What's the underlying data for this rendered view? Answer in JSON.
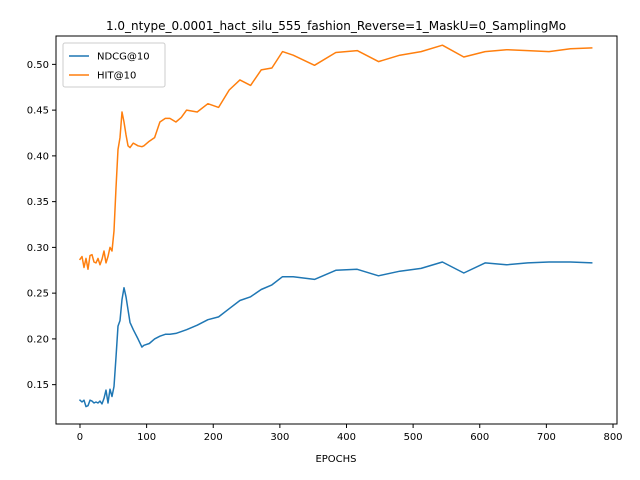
{
  "chart_data": {
    "type": "line",
    "title": "1.0_ntype_0.0001_hact_silu_555_fashion_Reverse=1_MaskU=0_SamplingMo",
    "xlabel": "EPOCHS",
    "ylabel": "",
    "xlim": [
      -36,
      806
    ],
    "ylim": [
      0.107,
      0.531
    ],
    "xticks": [
      0,
      100,
      200,
      300,
      400,
      500,
      600,
      700,
      800
    ],
    "yticks": [
      0.15,
      0.2,
      0.25,
      0.3,
      0.35,
      0.4,
      0.45,
      0.5
    ],
    "ytick_labels": [
      "0.15",
      "0.20",
      "0.25",
      "0.30",
      "0.35",
      "0.40",
      "0.45",
      "0.50"
    ],
    "grid": false,
    "legend_position": "top-left",
    "series": [
      {
        "name": "NDCG@10",
        "color": "#1f77b4",
        "x": [
          0,
          3,
          6,
          9,
          12,
          15,
          18,
          21,
          24,
          27,
          30,
          33,
          36,
          39,
          42,
          45,
          48,
          51,
          54,
          57,
          60,
          63,
          66,
          69,
          72,
          75,
          80,
          87,
          93,
          96,
          104,
          112,
          120,
          128,
          135,
          144,
          152,
          160,
          176,
          192,
          208,
          224,
          240,
          256,
          272,
          288,
          304,
          320,
          352,
          384,
          416,
          448,
          480,
          512,
          544,
          576,
          608,
          640,
          672,
          704,
          736,
          768
        ],
        "y": [
          0.133,
          0.131,
          0.133,
          0.126,
          0.127,
          0.133,
          0.132,
          0.13,
          0.131,
          0.13,
          0.132,
          0.129,
          0.135,
          0.144,
          0.13,
          0.145,
          0.137,
          0.148,
          0.18,
          0.214,
          0.22,
          0.243,
          0.256,
          0.246,
          0.232,
          0.218,
          0.21,
          0.2,
          0.191,
          0.193,
          0.195,
          0.2,
          0.203,
          0.205,
          0.205,
          0.206,
          0.208,
          0.21,
          0.215,
          0.221,
          0.224,
          0.233,
          0.242,
          0.246,
          0.254,
          0.259,
          0.268,
          0.268,
          0.265,
          0.275,
          0.276,
          0.269,
          0.274,
          0.277,
          0.284,
          0.272,
          0.283,
          0.281,
          0.283,
          0.284,
          0.284,
          0.283
        ]
      },
      {
        "name": "HIT@10",
        "color": "#ff7f0e",
        "x": [
          0,
          3,
          6,
          9,
          12,
          15,
          18,
          21,
          24,
          27,
          30,
          33,
          36,
          39,
          42,
          45,
          48,
          51,
          54,
          57,
          60,
          63,
          66,
          69,
          72,
          75,
          80,
          87,
          93,
          96,
          104,
          112,
          120,
          128,
          135,
          144,
          152,
          160,
          176,
          192,
          208,
          224,
          240,
          256,
          272,
          288,
          304,
          320,
          352,
          384,
          416,
          448,
          480,
          512,
          544,
          576,
          608,
          640,
          672,
          704,
          736,
          768
        ],
        "y": [
          0.287,
          0.29,
          0.278,
          0.288,
          0.276,
          0.291,
          0.292,
          0.284,
          0.283,
          0.288,
          0.281,
          0.287,
          0.296,
          0.283,
          0.29,
          0.3,
          0.296,
          0.318,
          0.365,
          0.407,
          0.42,
          0.448,
          0.437,
          0.423,
          0.411,
          0.409,
          0.414,
          0.411,
          0.41,
          0.411,
          0.416,
          0.42,
          0.437,
          0.441,
          0.441,
          0.437,
          0.442,
          0.45,
          0.448,
          0.457,
          0.453,
          0.472,
          0.483,
          0.477,
          0.494,
          0.496,
          0.514,
          0.51,
          0.499,
          0.513,
          0.515,
          0.503,
          0.51,
          0.514,
          0.521,
          0.508,
          0.514,
          0.516,
          0.515,
          0.514,
          0.517,
          0.518
        ]
      }
    ]
  }
}
